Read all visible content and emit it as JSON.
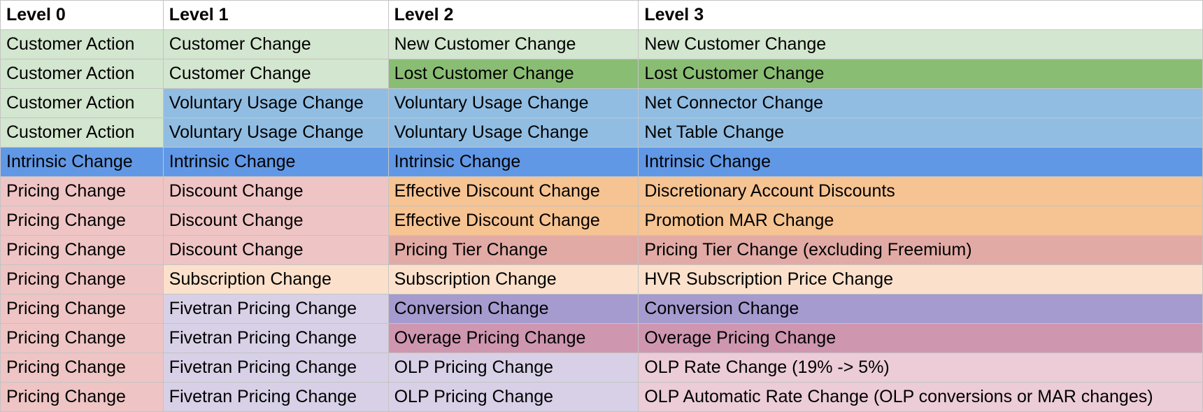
{
  "headers": [
    "Level 0",
    "Level 1",
    "Level 2",
    "Level 3"
  ],
  "rows": [
    [
      {
        "text": "Customer Action",
        "bg": "#d3e6cf"
      },
      {
        "text": "Customer Change",
        "bg": "#d3e6cf"
      },
      {
        "text": "New Customer Change",
        "bg": "#d3e6cf"
      },
      {
        "text": "New Customer Change",
        "bg": "#d3e6cf"
      }
    ],
    [
      {
        "text": "Customer Action",
        "bg": "#d3e6cf"
      },
      {
        "text": "Customer Change",
        "bg": "#d3e6cf"
      },
      {
        "text": "Lost Customer Change",
        "bg": "#8abd74"
      },
      {
        "text": "Lost Customer Change",
        "bg": "#8abd74"
      }
    ],
    [
      {
        "text": "Customer Action",
        "bg": "#d3e6cf"
      },
      {
        "text": "Voluntary Usage Change",
        "bg": "#91bde2"
      },
      {
        "text": "Voluntary Usage Change",
        "bg": "#91bde2"
      },
      {
        "text": "Net Connector Change",
        "bg": "#91bde2"
      }
    ],
    [
      {
        "text": "Customer Action",
        "bg": "#d3e6cf"
      },
      {
        "text": "Voluntary Usage Change",
        "bg": "#91bde2"
      },
      {
        "text": "Voluntary Usage Change",
        "bg": "#91bde2"
      },
      {
        "text": "Net Table Change",
        "bg": "#91bde2"
      }
    ],
    [
      {
        "text": "Intrinsic Change",
        "bg": "#6198e6"
      },
      {
        "text": "Intrinsic Change",
        "bg": "#6198e6"
      },
      {
        "text": "Intrinsic Change",
        "bg": "#6198e6"
      },
      {
        "text": "Intrinsic Change",
        "bg": "#6198e6"
      }
    ],
    [
      {
        "text": "Pricing Change",
        "bg": "#efc4c4"
      },
      {
        "text": "Discount Change",
        "bg": "#efc4c4"
      },
      {
        "text": "Effective Discount Change",
        "bg": "#f6c392"
      },
      {
        "text": "Discretionary Account Discounts",
        "bg": "#f6c392"
      }
    ],
    [
      {
        "text": "Pricing Change",
        "bg": "#efc4c4"
      },
      {
        "text": "Discount Change",
        "bg": "#efc4c4"
      },
      {
        "text": "Effective Discount Change",
        "bg": "#f6c392"
      },
      {
        "text": "Promotion MAR Change",
        "bg": "#f6c392"
      }
    ],
    [
      {
        "text": "Pricing Change",
        "bg": "#efc4c4"
      },
      {
        "text": "Discount Change",
        "bg": "#efc4c4"
      },
      {
        "text": "Pricing Tier Change",
        "bg": "#e2aaa5"
      },
      {
        "text": "Pricing Tier Change (excluding Freemium)",
        "bg": "#e2aaa5"
      }
    ],
    [
      {
        "text": "Pricing Change",
        "bg": "#efc4c4"
      },
      {
        "text": "Subscription Change",
        "bg": "#fbe1cb"
      },
      {
        "text": "Subscription Change",
        "bg": "#fbe1cb"
      },
      {
        "text": "HVR Subscription Price Change",
        "bg": "#fbe1cb"
      }
    ],
    [
      {
        "text": "Pricing Change",
        "bg": "#efc4c4"
      },
      {
        "text": "Fivetran Pricing Change",
        "bg": "#d7d0e6"
      },
      {
        "text": "Conversion Change",
        "bg": "#a59bcf"
      },
      {
        "text": "Conversion Change",
        "bg": "#a59bcf"
      }
    ],
    [
      {
        "text": "Pricing Change",
        "bg": "#efc4c4"
      },
      {
        "text": "Fivetran Pricing Change",
        "bg": "#d7d0e6"
      },
      {
        "text": "Overage Pricing Change",
        "bg": "#cf96b0"
      },
      {
        "text": "Overage Pricing Change",
        "bg": "#cf96b0"
      }
    ],
    [
      {
        "text": "Pricing Change",
        "bg": "#efc4c4"
      },
      {
        "text": "Fivetran Pricing Change",
        "bg": "#d7d0e6"
      },
      {
        "text": "OLP Pricing Change",
        "bg": "#d7d0e6"
      },
      {
        "text": "OLP Rate Change (19% -> 5%)",
        "bg": "#ebccd7"
      }
    ],
    [
      {
        "text": "Pricing Change",
        "bg": "#efc4c4"
      },
      {
        "text": "Fivetran Pricing Change",
        "bg": "#d7d0e6"
      },
      {
        "text": "OLP Pricing Change",
        "bg": "#d7d0e6"
      },
      {
        "text": "OLP Automatic Rate Change (OLP conversions or MAR changes)",
        "bg": "#ebccd7"
      }
    ]
  ]
}
